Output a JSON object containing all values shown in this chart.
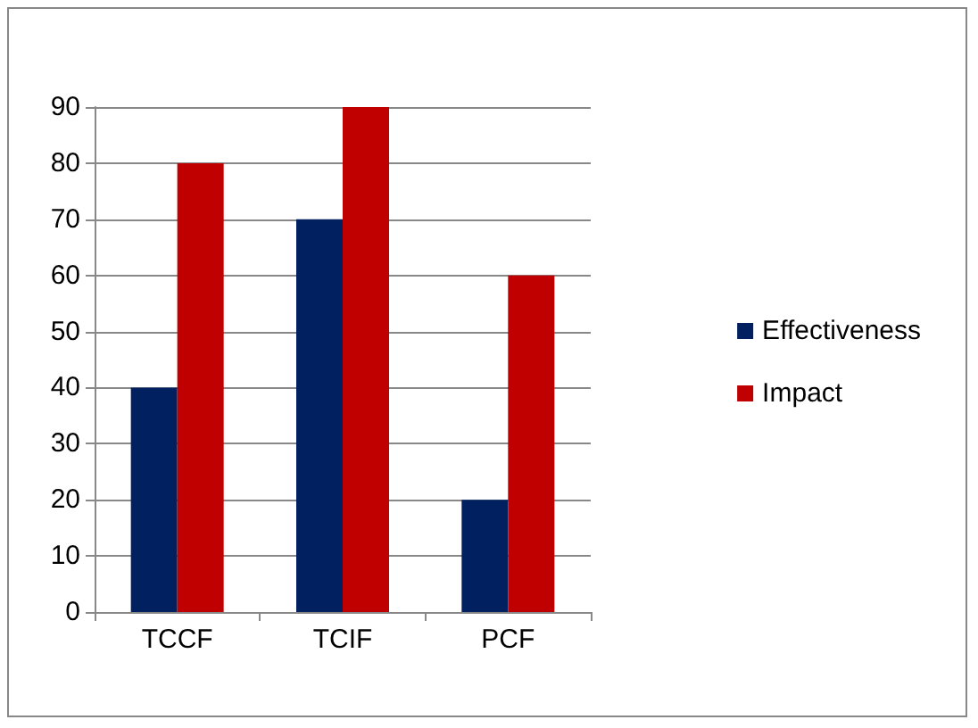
{
  "chart_data": {
    "type": "bar",
    "categories": [
      "TCCF",
      "TCIF",
      "PCF"
    ],
    "series": [
      {
        "name": "Effectiveness",
        "color": "#002060",
        "values": [
          40,
          70,
          20
        ]
      },
      {
        "name": "Impact",
        "color": "#c00000",
        "values": [
          80,
          90,
          60
        ]
      }
    ],
    "ylim": [
      0,
      90
    ],
    "yticks": [
      0,
      10,
      20,
      30,
      40,
      50,
      60,
      70,
      80,
      90
    ],
    "grid": "y",
    "legend": "right"
  }
}
